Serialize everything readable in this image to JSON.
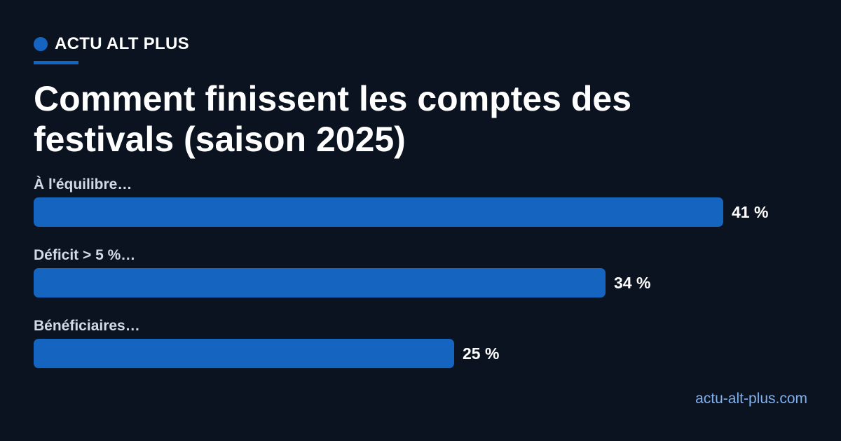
{
  "brand": {
    "name": "ACTU ALT PLUS",
    "accent_color": "#1565c0"
  },
  "title": "Comment finissent les comptes des festivals (saison 2025)",
  "footer": {
    "url": "actu-alt-plus.com"
  },
  "chart_data": {
    "type": "bar",
    "orientation": "horizontal",
    "categories": [
      "À l'équilibre…",
      "Déficit > 5 %…",
      "Bénéficiaires…"
    ],
    "values": [
      41,
      34,
      25
    ],
    "value_labels": [
      "41 %",
      "34 %",
      "25 %"
    ],
    "unit": "%",
    "title": "Comment finissent les comptes des festivals (saison 2025)",
    "xlabel": "",
    "ylabel": "",
    "grid": false,
    "bar_color": "#1565c0"
  }
}
